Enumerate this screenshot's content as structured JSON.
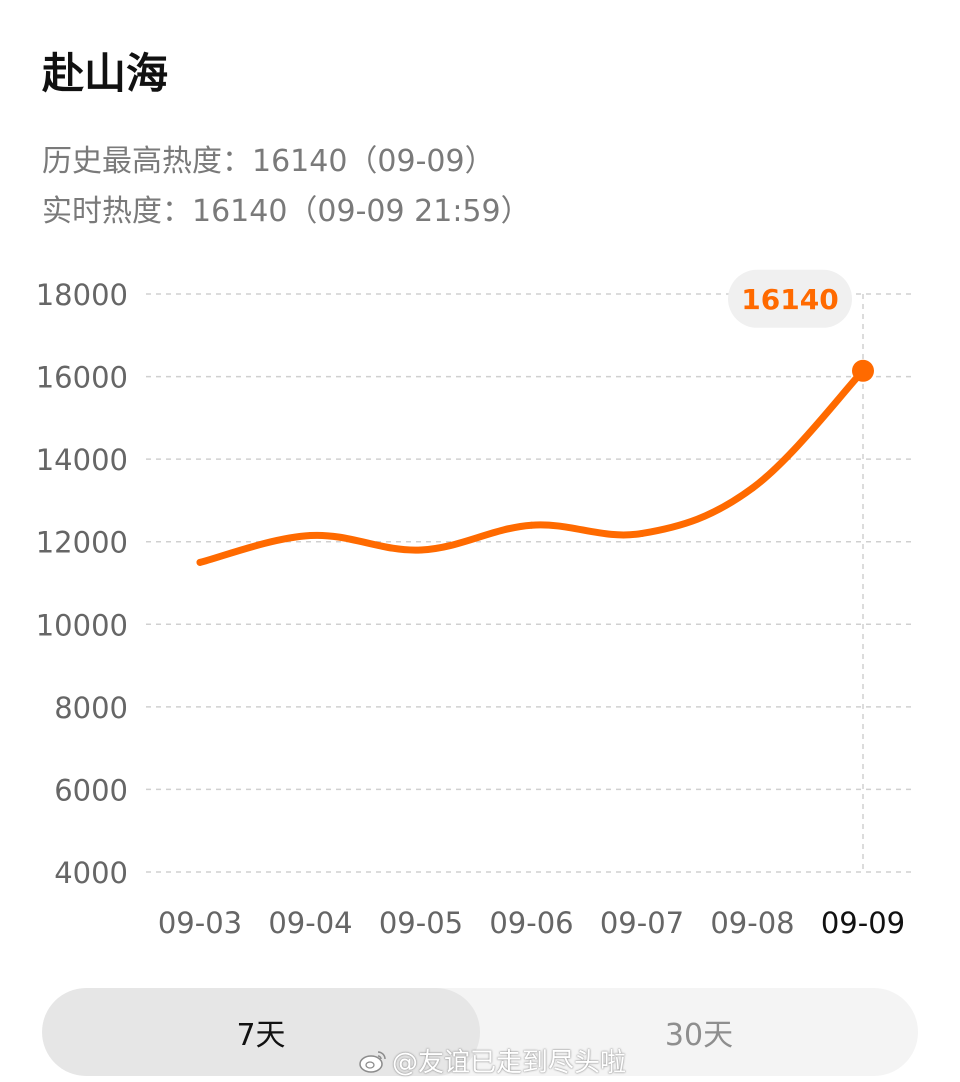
{
  "header": {
    "title": "赴山海",
    "peak_line": "历史最高热度：16140（09-09）",
    "realtime_line": "实时热度：16140（09-09 21:59）"
  },
  "chart_data": {
    "type": "line",
    "categories": [
      "09-03",
      "09-04",
      "09-05",
      "09-06",
      "09-07",
      "09-08",
      "09-09"
    ],
    "series": [
      {
        "values": [
          11500,
          12150,
          11800,
          12400,
          12200,
          13300,
          16140
        ]
      }
    ],
    "ylim": [
      4000,
      18000
    ],
    "yticks": [
      18000,
      16000,
      14000,
      12000,
      10000,
      8000,
      6000,
      4000
    ],
    "grid": true,
    "highlight": {
      "category": "09-09",
      "label": "16140"
    },
    "colors": {
      "line": "#FF6A00",
      "grid": "#D0D0D0",
      "tick_text": "#666666",
      "highlight_tick_text": "#111111",
      "bubble_bg": "#F0F0F0"
    }
  },
  "tabs": [
    {
      "label": "7天",
      "active": true
    },
    {
      "label": "30天",
      "active": false
    }
  ],
  "watermark": {
    "icon": "weibo-icon",
    "text": "@友谊已走到尽头啦"
  }
}
